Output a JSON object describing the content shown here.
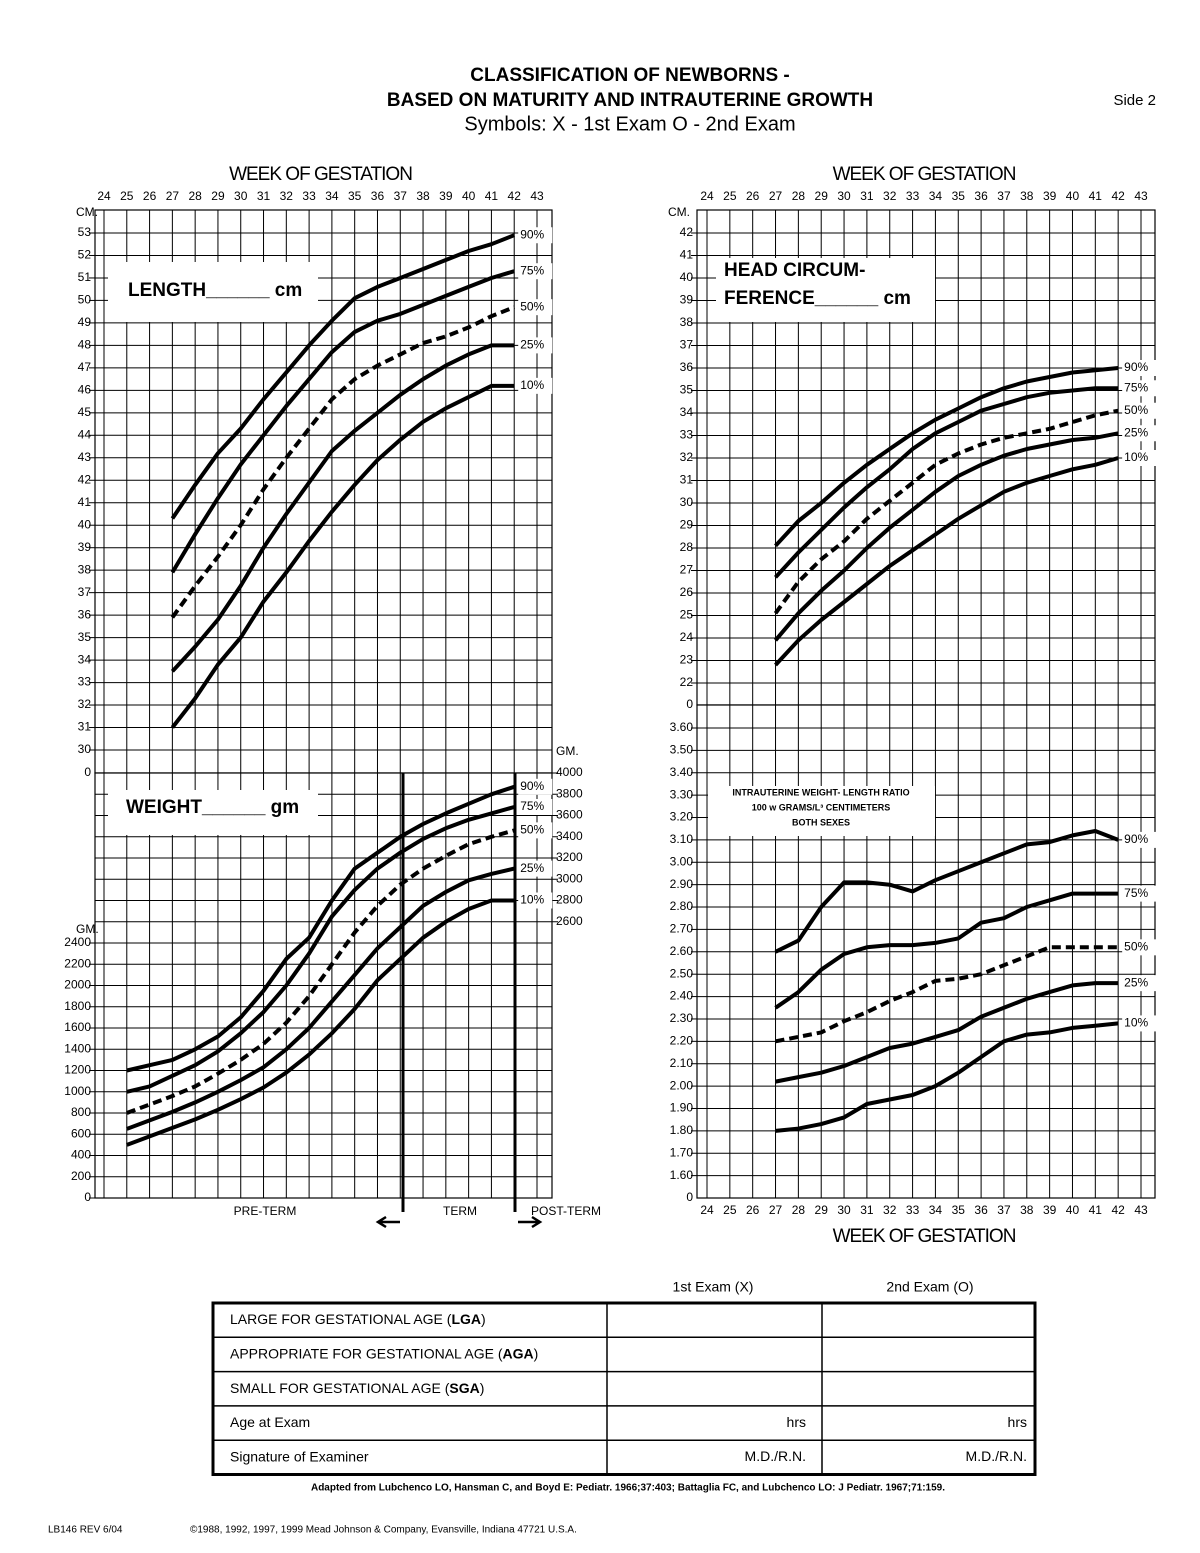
{
  "header": {
    "title_lines": [
      "CLASSIFICATION OF NEWBORNS -",
      "BASED ON MATURITY AND INTRAUTERINE GROWTH"
    ],
    "subtitle": "Symbols:  X - 1st Exam  O - 2nd Exam",
    "side": "Side 2"
  },
  "chart_data": [
    {
      "type": "line",
      "x_label": "WEEK OF GESTATION",
      "y_unit": "CM.",
      "break_label": "0",
      "annotations": [
        "LENGTH______ cm"
      ],
      "xlim": [
        24,
        43
      ],
      "xticks": [
        24,
        25,
        26,
        27,
        28,
        29,
        30,
        31,
        32,
        33,
        34,
        35,
        36,
        37,
        38,
        39,
        40,
        41,
        42,
        43
      ],
      "ylim": [
        30,
        53
      ],
      "yticks": [
        30,
        31,
        32,
        33,
        34,
        35,
        36,
        37,
        38,
        39,
        40,
        41,
        42,
        43,
        44,
        45,
        46,
        47,
        48,
        49,
        50,
        51,
        52,
        53
      ],
      "grid": true,
      "x": [
        27,
        28,
        29,
        30,
        31,
        32,
        33,
        34,
        35,
        36,
        37,
        38,
        39,
        40,
        41,
        42
      ],
      "series": [
        {
          "name": "90%",
          "color": "#000000",
          "dash": false,
          "values": [
            40.3,
            41.8,
            43.2,
            44.3,
            45.6,
            46.8,
            48.0,
            49.1,
            50.1,
            50.6,
            51.0,
            51.4,
            51.8,
            52.2,
            52.5,
            52.9
          ]
        },
        {
          "name": "75%",
          "color": "#000000",
          "dash": false,
          "values": [
            37.9,
            39.6,
            41.2,
            42.7,
            44.0,
            45.3,
            46.5,
            47.7,
            48.6,
            49.1,
            49.4,
            49.8,
            50.2,
            50.6,
            51.0,
            51.3
          ]
        },
        {
          "name": "50%",
          "color": "#000000",
          "dash": true,
          "values": [
            35.9,
            37.3,
            38.6,
            40.0,
            41.6,
            43.0,
            44.3,
            45.6,
            46.5,
            47.1,
            47.6,
            48.1,
            48.4,
            48.8,
            49.3,
            49.7
          ]
        },
        {
          "name": "25%",
          "color": "#000000",
          "dash": false,
          "values": [
            33.5,
            34.6,
            35.8,
            37.3,
            39.0,
            40.5,
            41.9,
            43.3,
            44.2,
            45.0,
            45.8,
            46.5,
            47.1,
            47.6,
            48.0,
            48.0
          ]
        },
        {
          "name": "10%",
          "color": "#000000",
          "dash": false,
          "values": [
            31.0,
            32.3,
            33.8,
            35.0,
            36.6,
            37.9,
            39.3,
            40.6,
            41.8,
            42.9,
            43.8,
            44.6,
            45.2,
            45.7,
            46.2,
            46.2
          ]
        }
      ]
    },
    {
      "type": "line",
      "y_unit": "GM.",
      "y2_unit": "GM.",
      "annotations": [
        "WEIGHT______ gm"
      ],
      "regions": [
        "PRE-TERM",
        "TERM",
        "POST-TERM"
      ],
      "xlim": [
        24,
        43
      ],
      "ylim": [
        0,
        4000
      ],
      "yticks": [
        0,
        200,
        400,
        600,
        800,
        1000,
        1200,
        1400,
        1600,
        1800,
        2000,
        2200,
        2400
      ],
      "y2lim": [
        0,
        4000
      ],
      "y2ticks": [
        2600,
        2800,
        3000,
        3200,
        3400,
        3600,
        3800,
        4000
      ],
      "grid": true,
      "x": [
        25,
        26,
        27,
        28,
        29,
        30,
        31,
        32,
        33,
        34,
        35,
        36,
        37,
        38,
        39,
        40,
        41,
        42
      ],
      "series": [
        {
          "name": "90%",
          "color": "#000000",
          "dash": false,
          "values": [
            1200,
            1250,
            1300,
            1400,
            1520,
            1700,
            1950,
            2250,
            2450,
            2800,
            3100,
            3250,
            3400,
            3520,
            3620,
            3710,
            3800,
            3870
          ]
        },
        {
          "name": "75%",
          "color": "#000000",
          "dash": false,
          "values": [
            1000,
            1050,
            1150,
            1250,
            1380,
            1550,
            1750,
            2000,
            2300,
            2650,
            2900,
            3100,
            3250,
            3380,
            3480,
            3560,
            3620,
            3680
          ]
        },
        {
          "name": "50%",
          "color": "#000000",
          "dash": true,
          "values": [
            800,
            880,
            960,
            1050,
            1170,
            1300,
            1450,
            1650,
            1900,
            2200,
            2500,
            2750,
            2950,
            3100,
            3220,
            3330,
            3400,
            3460
          ]
        },
        {
          "name": "25%",
          "color": "#000000",
          "dash": false,
          "values": [
            650,
            730,
            810,
            900,
            1000,
            1110,
            1230,
            1400,
            1600,
            1850,
            2100,
            2350,
            2550,
            2750,
            2880,
            2990,
            3050,
            3100
          ]
        },
        {
          "name": "10%",
          "color": "#000000",
          "dash": false,
          "values": [
            500,
            580,
            660,
            740,
            830,
            930,
            1040,
            1180,
            1350,
            1550,
            1780,
            2050,
            2250,
            2450,
            2600,
            2720,
            2800,
            2800
          ]
        }
      ]
    },
    {
      "type": "line",
      "x_label": "WEEK OF GESTATION",
      "y_unit": "CM.",
      "break_label": "0",
      "annotations": [
        "HEAD CIRCUM-",
        "FERENCE______ cm"
      ],
      "xlim": [
        24,
        43
      ],
      "xticks": [
        24,
        25,
        26,
        27,
        28,
        29,
        30,
        31,
        32,
        33,
        34,
        35,
        36,
        37,
        38,
        39,
        40,
        41,
        42,
        43
      ],
      "ylim": [
        22,
        42
      ],
      "yticks": [
        22,
        23,
        24,
        25,
        26,
        27,
        28,
        29,
        30,
        31,
        32,
        33,
        34,
        35,
        36,
        37,
        38,
        39,
        40,
        41,
        42
      ],
      "grid": true,
      "x": [
        27,
        28,
        29,
        30,
        31,
        32,
        33,
        34,
        35,
        36,
        37,
        38,
        39,
        40,
        41,
        42
      ],
      "series": [
        {
          "name": "90%",
          "color": "#000000",
          "dash": false,
          "values": [
            28.1,
            29.2,
            30.0,
            30.9,
            31.7,
            32.4,
            33.1,
            33.7,
            34.2,
            34.7,
            35.1,
            35.4,
            35.6,
            35.8,
            35.9,
            36.0
          ]
        },
        {
          "name": "75%",
          "color": "#000000",
          "dash": false,
          "values": [
            26.7,
            27.8,
            28.8,
            29.8,
            30.7,
            31.5,
            32.4,
            33.1,
            33.6,
            34.1,
            34.4,
            34.7,
            34.9,
            35.0,
            35.1,
            35.1
          ]
        },
        {
          "name": "50%",
          "color": "#000000",
          "dash": true,
          "values": [
            25.1,
            26.5,
            27.5,
            28.3,
            29.3,
            30.1,
            30.9,
            31.7,
            32.2,
            32.6,
            32.9,
            33.1,
            33.3,
            33.6,
            33.9,
            34.1
          ]
        },
        {
          "name": "25%",
          "color": "#000000",
          "dash": false,
          "values": [
            23.9,
            25.1,
            26.1,
            27.0,
            28.0,
            28.9,
            29.7,
            30.5,
            31.2,
            31.7,
            32.1,
            32.4,
            32.6,
            32.8,
            32.9,
            33.1
          ]
        },
        {
          "name": "10%",
          "color": "#000000",
          "dash": false,
          "values": [
            22.8,
            23.9,
            24.8,
            25.6,
            26.4,
            27.2,
            27.9,
            28.6,
            29.3,
            29.9,
            30.5,
            30.9,
            31.2,
            31.5,
            31.7,
            32.0
          ]
        }
      ]
    },
    {
      "type": "line",
      "x_label": "WEEK OF GESTATION",
      "break_label": "0",
      "annotations": [
        "INTRAUTERINE WEIGHT- LENGTH RATIO",
        "100 w GRAMS/L³ CENTIMETERS",
        "BOTH SEXES"
      ],
      "xlim": [
        24,
        43
      ],
      "xticks": [
        24,
        25,
        26,
        27,
        28,
        29,
        30,
        31,
        32,
        33,
        34,
        35,
        36,
        37,
        38,
        39,
        40,
        41,
        42,
        43
      ],
      "ylim": [
        1.5,
        3.6
      ],
      "yticks": [
        {
          "value": 1.6,
          "label": "1.60"
        },
        {
          "value": 1.7,
          "label": "1.70"
        },
        {
          "value": 1.8,
          "label": "1.80"
        },
        {
          "value": 1.9,
          "label": "1.90"
        },
        {
          "value": 2.0,
          "label": "2.00"
        },
        {
          "value": 2.1,
          "label": "2.10"
        },
        {
          "value": 2.2,
          "label": "2.20"
        },
        {
          "value": 2.3,
          "label": "2.30"
        },
        {
          "value": 2.4,
          "label": "2.40"
        },
        {
          "value": 2.5,
          "label": "2.50"
        },
        {
          "value": 2.6,
          "label": "2.60"
        },
        {
          "value": 2.7,
          "label": "2.70"
        },
        {
          "value": 2.8,
          "label": "2.80"
        },
        {
          "value": 2.9,
          "label": "2.90"
        },
        {
          "value": 3.0,
          "label": "3.00"
        },
        {
          "value": 3.1,
          "label": "3.10"
        },
        {
          "value": 3.2,
          "label": "3.20"
        },
        {
          "value": 3.3,
          "label": "3.30"
        },
        {
          "value": 3.4,
          "label": "3.40"
        },
        {
          "value": 3.5,
          "label": "3.50"
        },
        {
          "value": 3.6,
          "label": "3.60"
        }
      ],
      "grid": true,
      "x": [
        27,
        28,
        29,
        30,
        31,
        32,
        33,
        34,
        35,
        36,
        37,
        38,
        39,
        40,
        41,
        42
      ],
      "series": [
        {
          "name": "90%",
          "color": "#000000",
          "dash": false,
          "values": [
            2.6,
            2.65,
            2.8,
            2.91,
            2.91,
            2.9,
            2.87,
            2.92,
            2.96,
            3.0,
            3.04,
            3.08,
            3.09,
            3.12,
            3.14,
            3.1
          ]
        },
        {
          "name": "75%",
          "color": "#000000",
          "dash": false,
          "values": [
            2.35,
            2.42,
            2.52,
            2.59,
            2.62,
            2.63,
            2.63,
            2.64,
            2.66,
            2.73,
            2.75,
            2.8,
            2.83,
            2.86,
            2.86,
            2.86
          ]
        },
        {
          "name": "50%",
          "color": "#000000",
          "dash": true,
          "values": [
            2.2,
            2.22,
            2.24,
            2.29,
            2.33,
            2.38,
            2.42,
            2.47,
            2.48,
            2.5,
            2.54,
            2.58,
            2.62,
            2.62,
            2.62,
            2.62
          ]
        },
        {
          "name": "25%",
          "color": "#000000",
          "dash": false,
          "values": [
            2.02,
            2.04,
            2.06,
            2.09,
            2.13,
            2.17,
            2.19,
            2.22,
            2.25,
            2.31,
            2.35,
            2.39,
            2.42,
            2.45,
            2.46,
            2.46
          ]
        },
        {
          "name": "10%",
          "color": "#000000",
          "dash": false,
          "values": [
            1.8,
            1.81,
            1.83,
            1.86,
            1.92,
            1.94,
            1.96,
            2.0,
            2.06,
            2.13,
            2.2,
            2.23,
            2.24,
            2.26,
            2.27,
            2.28
          ]
        }
      ]
    }
  ],
  "table": {
    "header": [
      "1st Exam (X)",
      "2nd Exam (O)"
    ],
    "rows": [
      {
        "label": [
          "LARGE FOR GESTATIONAL AGE (",
          "LGA",
          ")"
        ]
      },
      {
        "label": [
          "APPROPRIATE FOR GESTATIONAL AGE (",
          "AGA",
          ")"
        ]
      },
      {
        "label": [
          "SMALL FOR GESTATIONAL AGE (",
          "SGA",
          ")"
        ]
      },
      {
        "label": [
          "Age at Exam"
        ],
        "cells": [
          "hrs",
          "hrs"
        ]
      },
      {
        "label": [
          "Signature of Examiner"
        ],
        "cells": [
          "M.D./R.N.",
          "M.D./R.N."
        ]
      }
    ],
    "citation": "Adapted from Lubchenco LO, Hansman C, and Boyd E: Pediatr. 1966;37:403; Battaglia FC, and Lubchenco LO: J Pediatr. 1967;71:159."
  },
  "footer": {
    "code": "LB146 REV 6/04",
    "copyright": "©1988, 1992, 1997, 1999 Mead Johnson & Company, Evansville, Indiana 47721 U.S.A."
  }
}
